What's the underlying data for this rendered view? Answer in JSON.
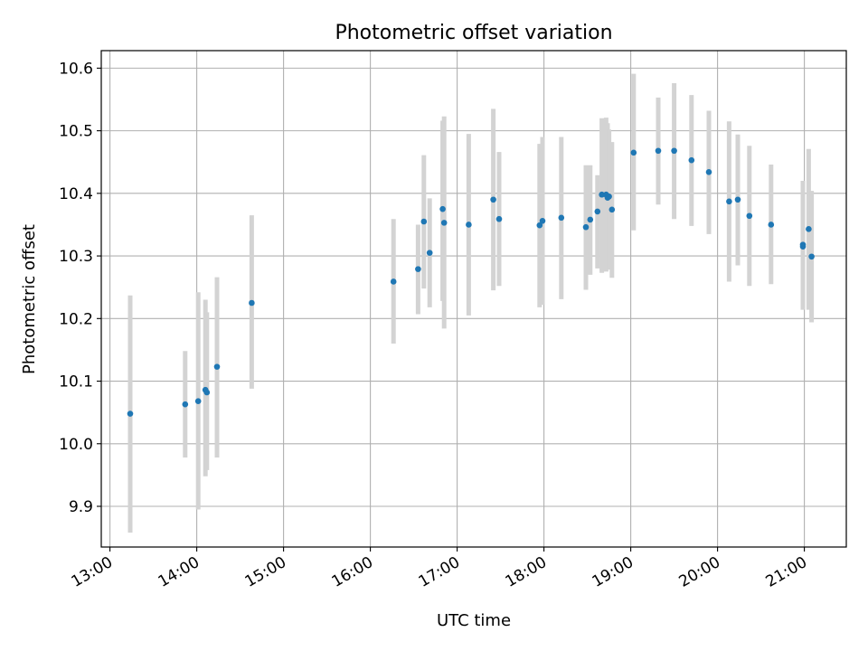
{
  "chart_data": {
    "type": "scatter",
    "title": "Photometric offset variation",
    "xlabel": "UTC time",
    "ylabel": "Photometric offset",
    "x_tick_labels": [
      "13:00",
      "14:00",
      "15:00",
      "16:00",
      "17:00",
      "18:00",
      "19:00",
      "20:00",
      "21:00"
    ],
    "y_tick_labels": [
      "9.9",
      "10.0",
      "10.1",
      "10.2",
      "10.3",
      "10.4",
      "10.5",
      "10.6"
    ],
    "x_ticks": [
      "13:00",
      "14:00",
      "15:00",
      "16:00",
      "17:00",
      "18:00",
      "19:00",
      "20:00",
      "21:00"
    ],
    "y_ticks": [
      9.9,
      10.0,
      10.1,
      10.2,
      10.3,
      10.4,
      10.5,
      10.6
    ],
    "xlim": [
      "12:54",
      "21:29"
    ],
    "ylim": [
      9.835,
      10.628
    ],
    "grid": true,
    "legend": false,
    "colors": {
      "points": "#1f77b4",
      "errorbars": "#d3d3d3",
      "grid": "#b0b0b0"
    },
    "series": [
      {
        "points": [
          {
            "x": "13:14",
            "y": 10.048,
            "yerr_low": 9.858,
            "yerr_high": 10.237
          },
          {
            "x": "13:52",
            "y": 10.063,
            "yerr_low": 9.978,
            "yerr_high": 10.148
          },
          {
            "x": "14:01",
            "y": 10.068,
            "yerr_low": 9.895,
            "yerr_high": 10.242
          },
          {
            "x": "14:06",
            "y": 10.086,
            "yerr_low": 9.948,
            "yerr_high": 10.23
          },
          {
            "x": "14:07",
            "y": 10.082,
            "yerr_low": 9.958,
            "yerr_high": 10.21
          },
          {
            "x": "14:14",
            "y": 10.123,
            "yerr_low": 9.978,
            "yerr_high": 10.266
          },
          {
            "x": "14:38",
            "y": 10.225,
            "yerr_low": 10.088,
            "yerr_high": 10.365
          },
          {
            "x": "16:16",
            "y": 10.259,
            "yerr_low": 10.16,
            "yerr_high": 10.359
          },
          {
            "x": "16:33",
            "y": 10.279,
            "yerr_low": 10.207,
            "yerr_high": 10.35
          },
          {
            "x": "16:37",
            "y": 10.355,
            "yerr_low": 10.248,
            "yerr_high": 10.461
          },
          {
            "x": "16:41",
            "y": 10.305,
            "yerr_low": 10.218,
            "yerr_high": 10.392
          },
          {
            "x": "16:50",
            "y": 10.375,
            "yerr_low": 10.228,
            "yerr_high": 10.516
          },
          {
            "x": "16:51",
            "y": 10.353,
            "yerr_low": 10.184,
            "yerr_high": 10.523
          },
          {
            "x": "17:08",
            "y": 10.35,
            "yerr_low": 10.205,
            "yerr_high": 10.495
          },
          {
            "x": "17:25",
            "y": 10.39,
            "yerr_low": 10.245,
            "yerr_high": 10.535
          },
          {
            "x": "17:29",
            "y": 10.359,
            "yerr_low": 10.252,
            "yerr_high": 10.466
          },
          {
            "x": "17:57",
            "y": 10.349,
            "yerr_low": 10.218,
            "yerr_high": 10.479
          },
          {
            "x": "17:59",
            "y": 10.356,
            "yerr_low": 10.222,
            "yerr_high": 10.49
          },
          {
            "x": "18:12",
            "y": 10.361,
            "yerr_low": 10.231,
            "yerr_high": 10.49
          },
          {
            "x": "18:29",
            "y": 10.346,
            "yerr_low": 10.246,
            "yerr_high": 10.445
          },
          {
            "x": "18:32",
            "y": 10.358,
            "yerr_low": 10.27,
            "yerr_high": 10.445
          },
          {
            "x": "18:37",
            "y": 10.371,
            "yerr_low": 10.28,
            "yerr_high": 10.429
          },
          {
            "x": "18:40",
            "y": 10.398,
            "yerr_low": 10.273,
            "yerr_high": 10.52
          },
          {
            "x": "18:43",
            "y": 10.398,
            "yerr_low": 10.275,
            "yerr_high": 10.521
          },
          {
            "x": "18:44",
            "y": 10.393,
            "yerr_low": 10.281,
            "yerr_high": 10.512
          },
          {
            "x": "18:45",
            "y": 10.395,
            "yerr_low": 10.278,
            "yerr_high": 10.502
          },
          {
            "x": "18:47",
            "y": 10.374,
            "yerr_low": 10.265,
            "yerr_high": 10.482
          },
          {
            "x": "19:02",
            "y": 10.465,
            "yerr_low": 10.341,
            "yerr_high": 10.591
          },
          {
            "x": "19:19",
            "y": 10.468,
            "yerr_low": 10.382,
            "yerr_high": 10.553
          },
          {
            "x": "19:30",
            "y": 10.468,
            "yerr_low": 10.359,
            "yerr_high": 10.576
          },
          {
            "x": "19:42",
            "y": 10.453,
            "yerr_low": 10.348,
            "yerr_high": 10.557
          },
          {
            "x": "19:54",
            "y": 10.434,
            "yerr_low": 10.335,
            "yerr_high": 10.532
          },
          {
            "x": "20:08",
            "y": 10.387,
            "yerr_low": 10.259,
            "yerr_high": 10.515
          },
          {
            "x": "20:14",
            "y": 10.39,
            "yerr_low": 10.285,
            "yerr_high": 10.494
          },
          {
            "x": "20:22",
            "y": 10.364,
            "yerr_low": 10.252,
            "yerr_high": 10.476
          },
          {
            "x": "20:37",
            "y": 10.35,
            "yerr_low": 10.255,
            "yerr_high": 10.446
          },
          {
            "x": "20:59",
            "y": 10.318,
            "yerr_low": 10.214,
            "yerr_high": 10.42
          },
          {
            "x": "20:59",
            "y": 10.315,
            "yerr_low": 10.216,
            "yerr_high": 10.405
          },
          {
            "x": "21:03",
            "y": 10.343,
            "yerr_low": 10.214,
            "yerr_high": 10.471
          },
          {
            "x": "21:05",
            "y": 10.299,
            "yerr_low": 10.194,
            "yerr_high": 10.404
          }
        ]
      }
    ]
  }
}
